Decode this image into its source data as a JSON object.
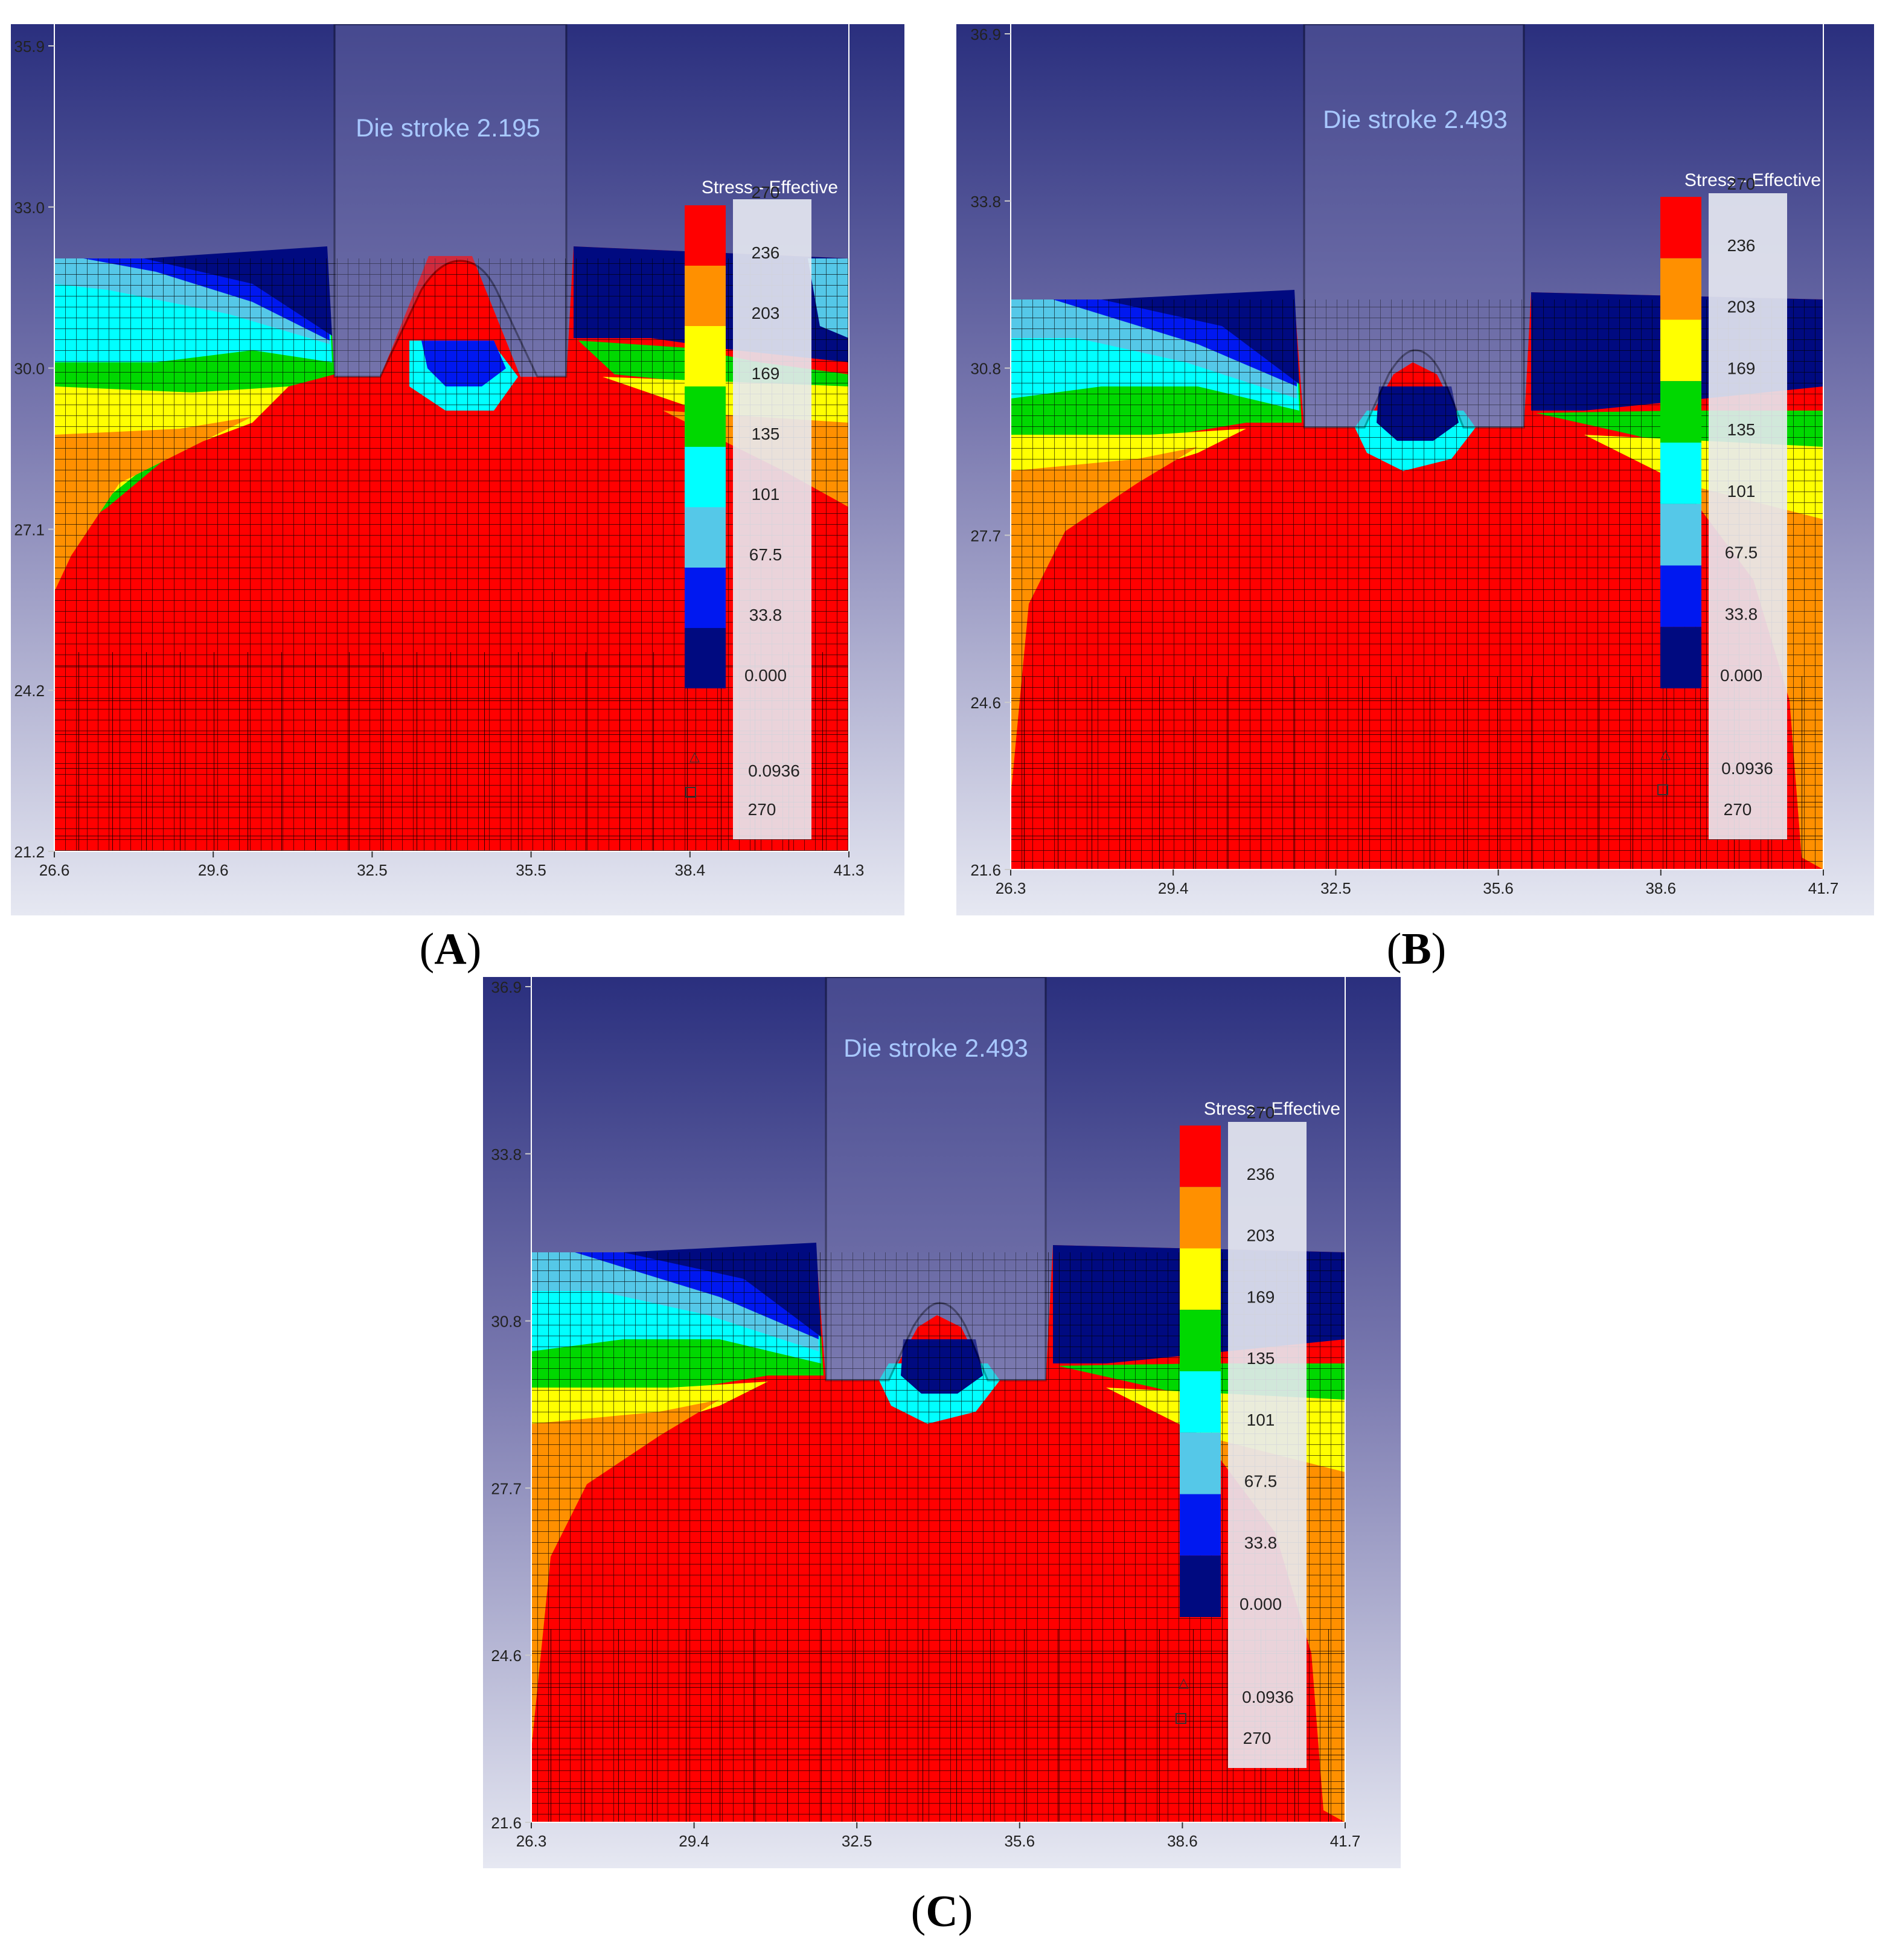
{
  "legend_colors": [
    "#000a80",
    "#0018f0",
    "#55c8e8",
    "#00ffff",
    "#00d800",
    "#ffff00",
    "#ff9000",
    "#ff0000"
  ],
  "background_gradient": [
    "#2a2f7e",
    "#7b7ab0",
    "#e6e8f2"
  ],
  "panels": [
    {
      "id": "A",
      "caption": "A",
      "die_label": "Die stroke 2.195",
      "legend_title": "Stress - Effective",
      "legend_values": [
        "270",
        "236",
        "203",
        "169",
        "135",
        "101",
        "67.5",
        "33.8",
        "0.000"
      ],
      "legend_min": "0.0936",
      "legend_max": "270",
      "x_ticks": [
        "26.6",
        "29.6",
        "32.5",
        "35.5",
        "38.4",
        "41.3"
      ],
      "y_ticks": [
        "35.9",
        "33.0",
        "30.0",
        "27.1",
        "24.2",
        "21.2"
      ]
    },
    {
      "id": "B",
      "caption": "B",
      "die_label": "Die stroke 2.493",
      "legend_title": "Stress - Effective",
      "legend_values": [
        "270",
        "236",
        "203",
        "169",
        "135",
        "101",
        "67.5",
        "33.8",
        "0.000"
      ],
      "legend_min": "0.0936",
      "legend_max": "270",
      "x_ticks": [
        "26.3",
        "29.4",
        "32.5",
        "35.6",
        "38.6",
        "41.7"
      ],
      "y_ticks": [
        "36.9",
        "33.8",
        "30.8",
        "27.7",
        "24.6",
        "21.6"
      ]
    },
    {
      "id": "C",
      "caption": "C",
      "die_label": "Die stroke 2.493",
      "legend_title": "Stress - Effective",
      "legend_values": [
        "270",
        "236",
        "203",
        "169",
        "135",
        "101",
        "67.5",
        "33.8",
        "0.000"
      ],
      "legend_min": "0.0936",
      "legend_max": "270",
      "x_ticks": [
        "26.3",
        "29.4",
        "32.5",
        "35.6",
        "38.6",
        "41.7"
      ],
      "y_ticks": [
        "36.9",
        "33.8",
        "30.8",
        "27.7",
        "24.6",
        "21.6"
      ]
    }
  ]
}
